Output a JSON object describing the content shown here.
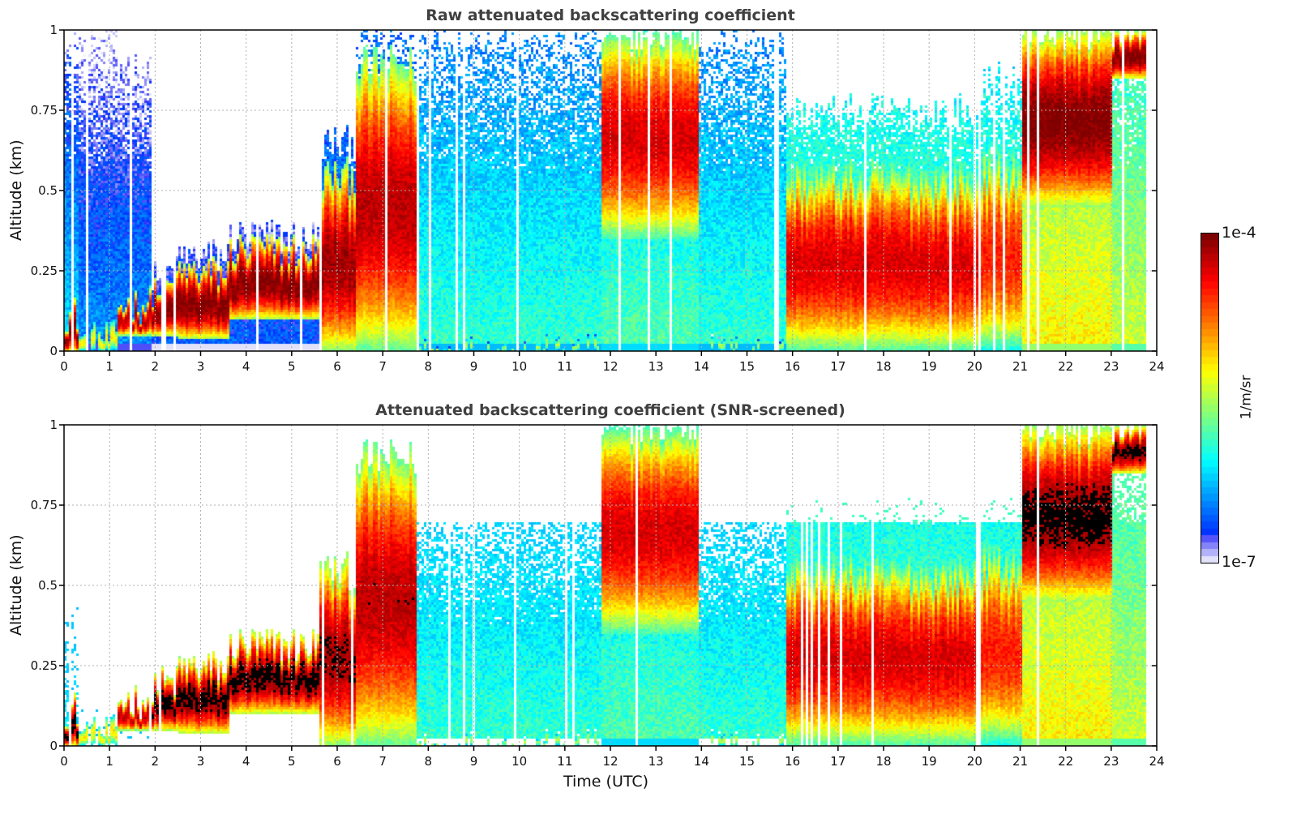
{
  "chart_data": [
    {
      "type": "heatmap",
      "title": "Raw attenuated backscattering coefficient",
      "xlabel": "",
      "ylabel": "Altitude (km)",
      "xlim": [
        0,
        24
      ],
      "ylim": [
        0,
        1
      ],
      "x_ticks": [
        "0",
        "1",
        "2",
        "3",
        "4",
        "5",
        "6",
        "7",
        "8",
        "9",
        "10",
        "11",
        "12",
        "13",
        "14",
        "15",
        "16",
        "17",
        "18",
        "19",
        "20",
        "21",
        "22",
        "23",
        "24"
      ],
      "y_ticks": [
        "0",
        "0.25",
        "0.5",
        "0.75",
        "1"
      ],
      "grid": true,
      "screened": false,
      "data_end_hour": 23.75,
      "profiles": [
        {
          "t0": 0.0,
          "t1": 0.3,
          "base": 0.0,
          "top": 0.12,
          "layer_log": -4.0,
          "bg_log": -6.2,
          "noise_top": 1.0
        },
        {
          "t0": 0.3,
          "t1": 1.15,
          "base": 0.0,
          "top": 0.05,
          "layer_log": -5.2,
          "bg_log": -6.4,
          "noise_top": 1.0
        },
        {
          "t0": 1.15,
          "t1": 1.9,
          "base": 0.05,
          "top": 0.15,
          "layer_log": -4.2,
          "bg_log": -6.4,
          "noise_top": 0.9
        },
        {
          "t0": 1.9,
          "t1": 2.5,
          "base": 0.05,
          "top": 0.2,
          "layer_log": -4.0,
          "bg_log": -6.6,
          "noise_top": 0.25
        },
        {
          "t0": 2.5,
          "t1": 3.6,
          "base": 0.04,
          "top": 0.25,
          "layer_log": -4.0,
          "bg_log": -6.6,
          "noise_top": 0.3
        },
        {
          "t0": 3.6,
          "t1": 5.6,
          "base": 0.1,
          "top": 0.32,
          "layer_log": -4.0,
          "bg_log": -6.6,
          "noise_top": 0.36
        },
        {
          "t0": 5.6,
          "t1": 6.4,
          "base": 0.0,
          "top": 0.55,
          "layer_log": -4.1,
          "bg_log": -6.2,
          "noise_top": 0.65
        },
        {
          "t0": 6.4,
          "t1": 7.7,
          "base": 0.0,
          "top": 0.9,
          "layer_log": -4.2,
          "bg_log": -6.0,
          "noise_top": 1.0
        },
        {
          "t0": 7.7,
          "t1": 11.8,
          "base": 0.0,
          "top": 0.0,
          "layer_log": -5.5,
          "bg_log": -5.9,
          "noise_top": 1.0
        },
        {
          "t0": 11.8,
          "t1": 13.9,
          "base": 0.35,
          "top": 1.0,
          "layer_log": -4.3,
          "bg_log": -5.8,
          "noise_top": 1.0
        },
        {
          "t0": 13.9,
          "t1": 15.85,
          "base": 0.0,
          "top": 0.0,
          "layer_log": -5.5,
          "bg_log": -5.9,
          "noise_top": 1.0
        },
        {
          "t0": 15.85,
          "t1": 20.1,
          "base": 0.0,
          "top": 0.55,
          "layer_log": -4.3,
          "bg_log": -5.6,
          "noise_top": 0.75
        },
        {
          "t0": 20.1,
          "t1": 21.0,
          "base": 0.0,
          "top": 0.6,
          "layer_log": -4.5,
          "bg_log": -5.6,
          "noise_top": 0.85
        },
        {
          "t0": 21.0,
          "t1": 23.0,
          "base": 0.45,
          "top": 1.0,
          "layer_log": -4.0,
          "bg_log": -5.2,
          "noise_top": 1.0
        },
        {
          "t0": 23.0,
          "t1": 23.75,
          "base": 0.85,
          "top": 1.0,
          "layer_log": -4.0,
          "bg_log": -5.4,
          "noise_top": 1.0
        }
      ]
    },
    {
      "type": "heatmap",
      "title": "Attenuated backscattering coefficient (SNR-screened)",
      "xlabel": "Time (UTC)",
      "ylabel": "Altitude (km)",
      "xlim": [
        0,
        24
      ],
      "ylim": [
        0,
        1
      ],
      "x_ticks": [
        "0",
        "1",
        "2",
        "3",
        "4",
        "5",
        "6",
        "7",
        "8",
        "9",
        "10",
        "11",
        "12",
        "13",
        "14",
        "15",
        "16",
        "17",
        "18",
        "19",
        "20",
        "21",
        "22",
        "23",
        "24"
      ],
      "y_ticks": [
        "0",
        "0.25",
        "0.5",
        "0.75",
        "1"
      ],
      "grid": true,
      "screened": true,
      "saturated_color": "#000000",
      "data_end_hour": 23.75
    }
  ],
  "colorbar": {
    "label_max": "1e-4",
    "label_min": "1e-7",
    "unit": "1/m/sr",
    "log_min": -7,
    "log_max": -4,
    "colormap": "jet"
  }
}
